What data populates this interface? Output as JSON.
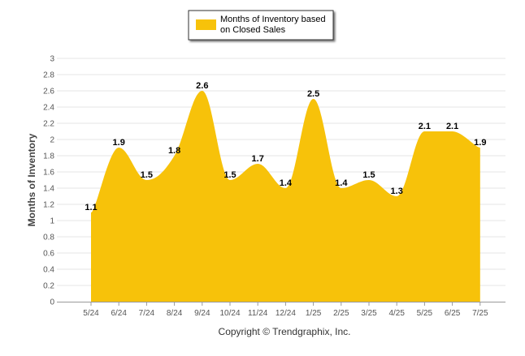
{
  "chart_data": {
    "type": "area",
    "title": "",
    "xlabel": "",
    "ylabel": "Months of Inventory",
    "categories": [
      "5/24",
      "6/24",
      "7/24",
      "8/24",
      "9/24",
      "10/24",
      "11/24",
      "12/24",
      "1/25",
      "2/25",
      "3/25",
      "4/25",
      "5/25",
      "6/25",
      "7/25"
    ],
    "series": [
      {
        "name": "Months of Inventory based on Closed Sales",
        "values": [
          1.1,
          1.9,
          1.5,
          1.8,
          2.6,
          1.5,
          1.7,
          1.4,
          2.5,
          1.4,
          1.5,
          1.3,
          2.1,
          2.1,
          1.9
        ],
        "labels": [
          "1.1",
          "1.9",
          "1.5",
          "1.8",
          "2.6",
          "1.5",
          "1.7",
          "1.4",
          "2.5",
          "1.4",
          "1.5",
          "1.3",
          "2.1",
          "2.1",
          "1.9"
        ],
        "color": "#F7C20A"
      }
    ],
    "ylim": [
      0,
      3
    ],
    "yticks": [
      "0",
      "0.2",
      "0.4",
      "0.6",
      "0.8",
      "1",
      "1.2",
      "1.4",
      "1.6",
      "1.8",
      "2",
      "2.2",
      "2.4",
      "2.6",
      "2.8",
      "3"
    ],
    "grid": true,
    "legend_position": "top-center",
    "legend_lines": [
      "Months of Inventory based",
      "on Closed Sales"
    ],
    "gridline_color": "#E6E6E6",
    "axis_text_color": "#555555"
  },
  "footer": {
    "copyright": "Copyright © Trendgraphix, Inc."
  }
}
